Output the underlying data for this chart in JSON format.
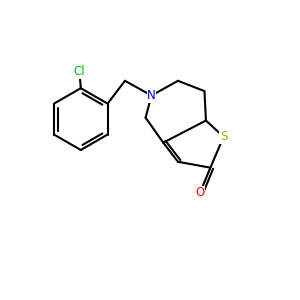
{
  "background_color": "#ffffff",
  "bond_color": "#000000",
  "atom_colors": {
    "Cl": "#00bb00",
    "N": "#0000ff",
    "S": "#aaaa00",
    "O": "#ff0000",
    "C": "#000000"
  },
  "line_width": 1.5
}
